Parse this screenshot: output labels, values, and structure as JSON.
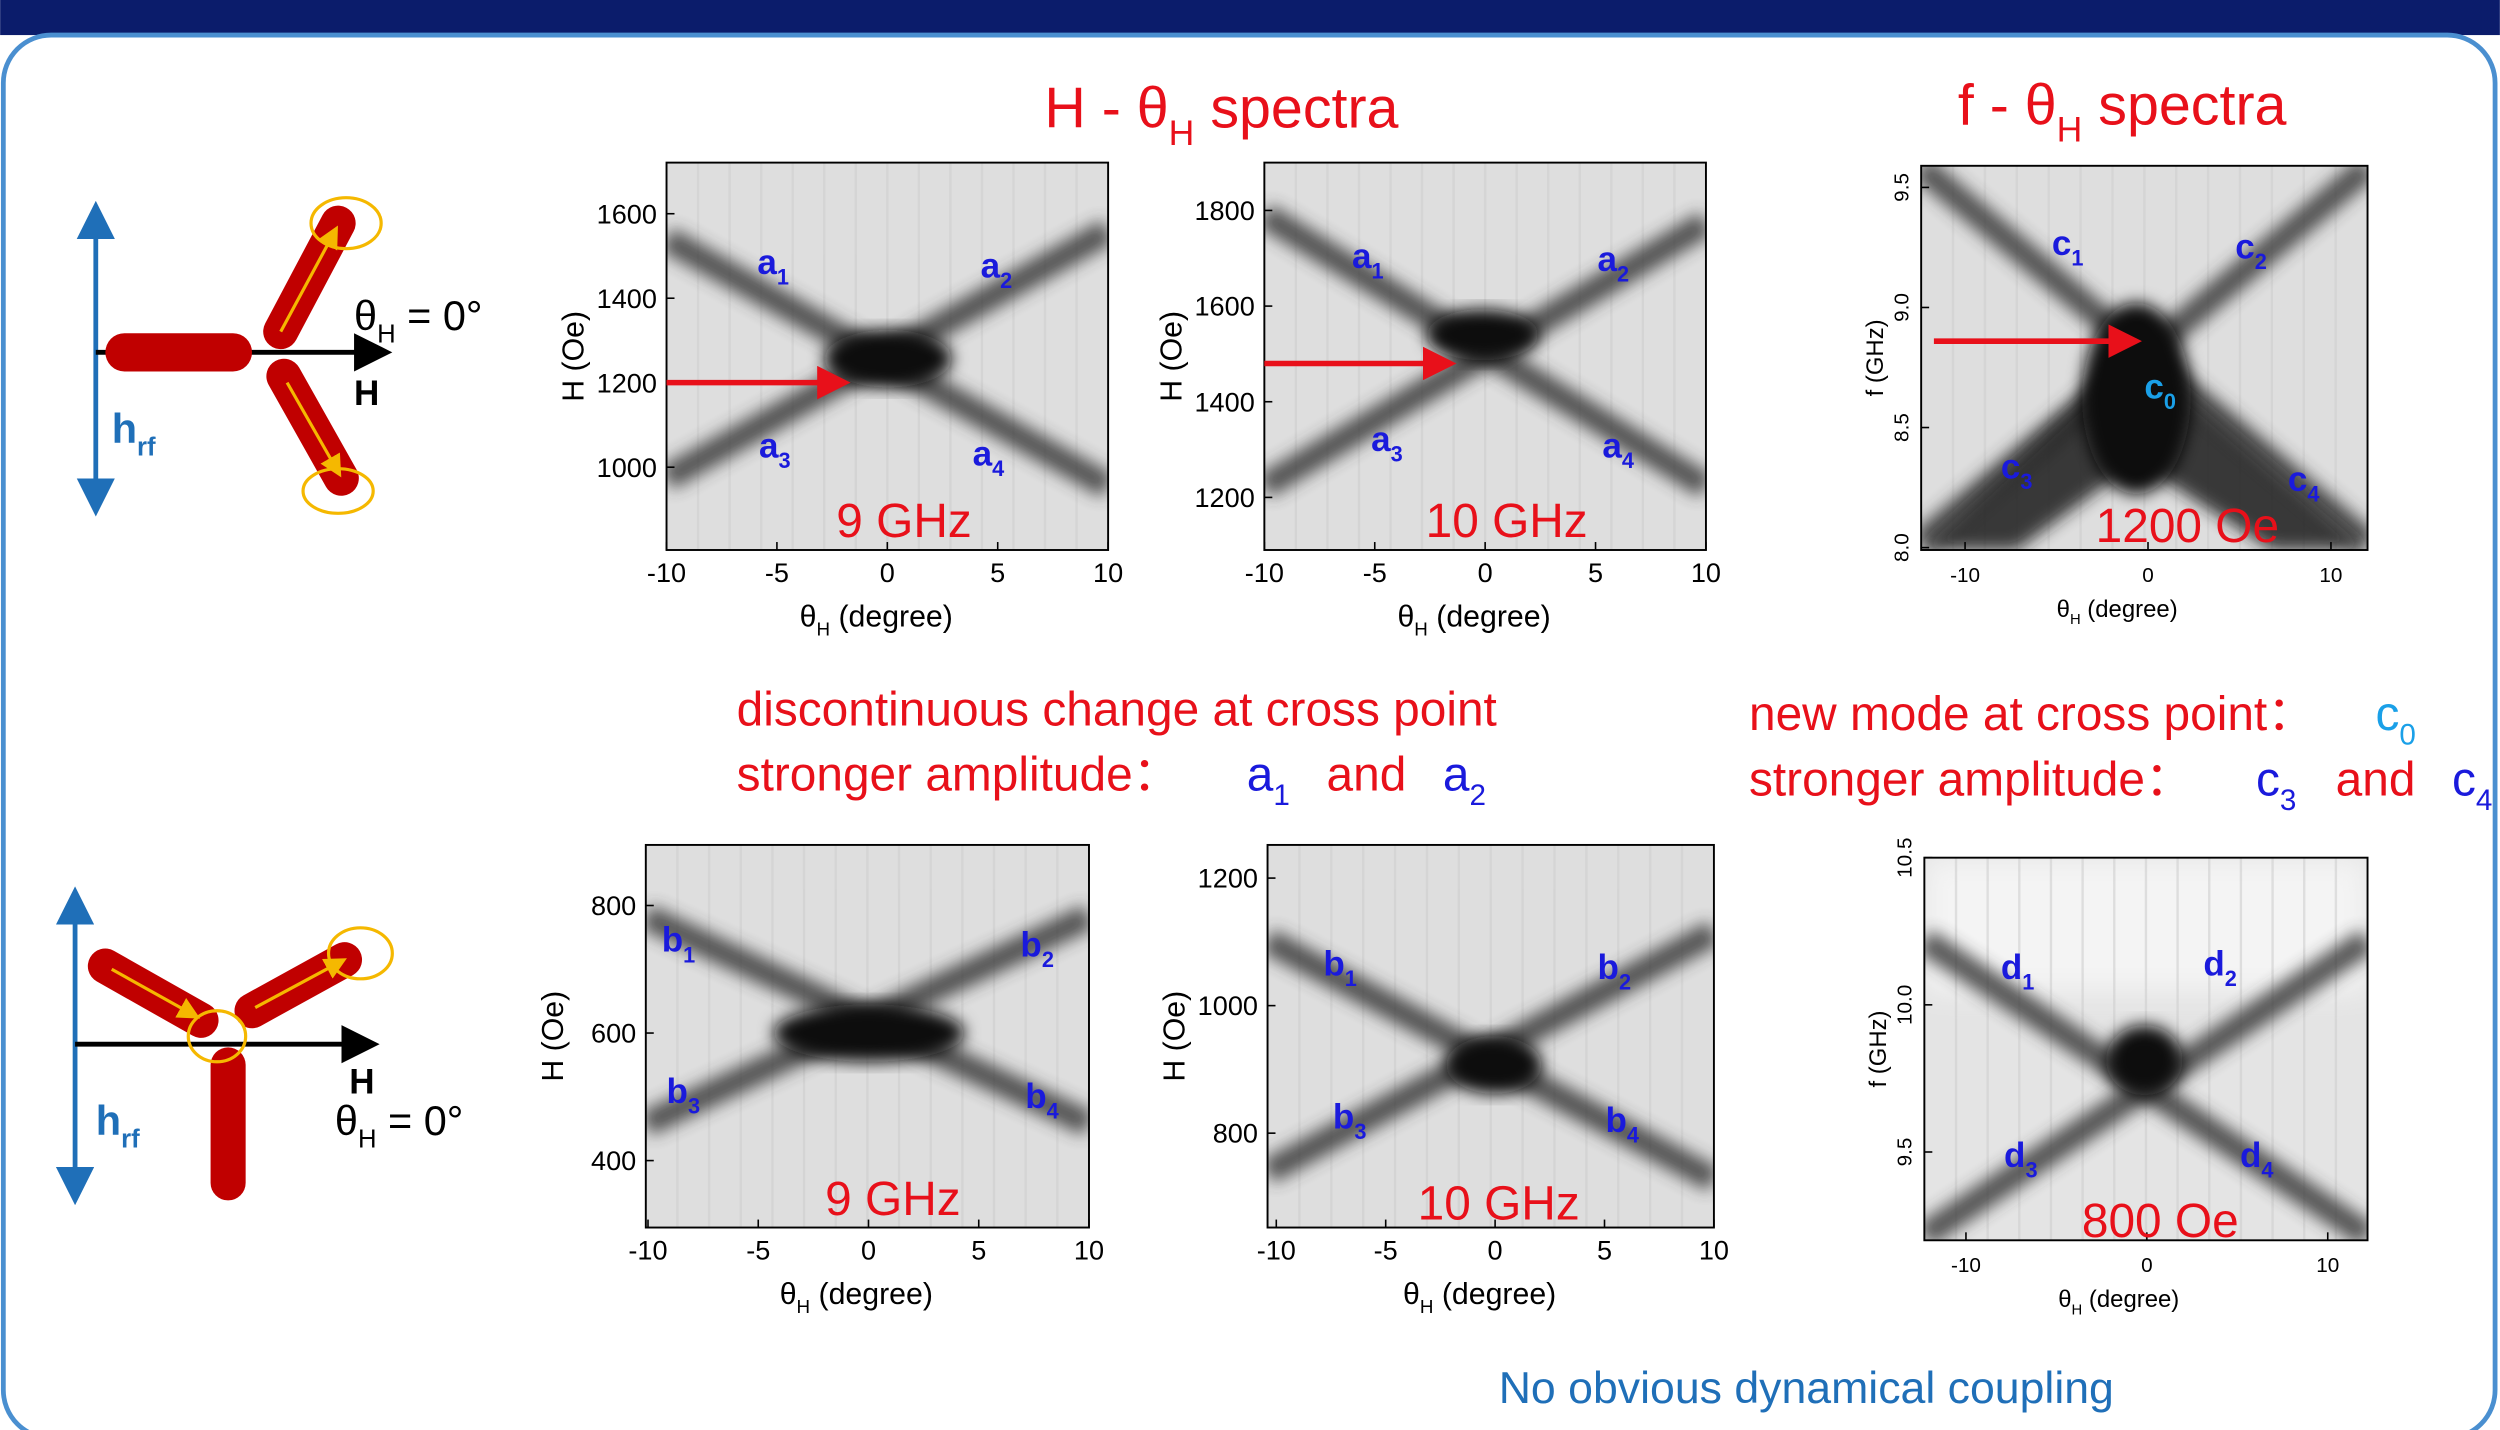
{
  "slide": {
    "section_titles": [
      {
        "main": "H - θ",
        "sub": "H",
        "rest": " spectra"
      },
      {
        "main": "f - θ",
        "sub": "H",
        "rest": " spectra"
      }
    ],
    "diagrams": [
      {
        "angle": {
          "main": "θ",
          "sub": "H",
          "rest": " = 0°"
        },
        "field": "H",
        "rf": {
          "main": "h",
          "sub": "rf"
        }
      },
      {
        "angle": {
          "main": "θ",
          "sub": "H",
          "rest": " = 0°"
        },
        "field": "H",
        "rf": {
          "main": "h",
          "sub": "rf"
        }
      }
    ],
    "panels": [
      {
        "xlabel": {
          "main": "θ",
          "sub": "H",
          "rest": " (degree)"
        },
        "ylabel": "H (Oe)",
        "xlim": [
          -10,
          10
        ],
        "ylim": [
          804,
          1721
        ],
        "xticks": [
          -10,
          -5,
          0,
          5,
          10
        ],
        "yticks": [
          1000,
          1200,
          1400,
          1600
        ],
        "annotation": "9 GHz",
        "modes": [
          {
            "letter": "a",
            "sub": "1",
            "color": "#1a1adc"
          },
          {
            "letter": "a",
            "sub": "2",
            "color": "#1a1adc"
          },
          {
            "letter": "a",
            "sub": "3",
            "color": "#1a1adc"
          },
          {
            "letter": "a",
            "sub": "4",
            "color": "#1a1adc"
          }
        ]
      },
      {
        "xlabel": {
          "main": "θ",
          "sub": "H",
          "rest": " (degree)"
        },
        "ylabel": "H (Oe)",
        "xlim": [
          -10,
          10
        ],
        "ylim": [
          1090,
          1900
        ],
        "xticks": [
          -10,
          -5,
          0,
          5,
          10
        ],
        "yticks": [
          1200,
          1400,
          1600,
          1800
        ],
        "annotation": "10 GHz",
        "modes": [
          {
            "letter": "a",
            "sub": "1",
            "color": "#1a1adc"
          },
          {
            "letter": "a",
            "sub": "2",
            "color": "#1a1adc"
          },
          {
            "letter": "a",
            "sub": "3",
            "color": "#1a1adc"
          },
          {
            "letter": "a",
            "sub": "4",
            "color": "#1a1adc"
          }
        ]
      },
      {
        "xlabel": {
          "main": "θ",
          "sub": "H",
          "rest": " (degree)"
        },
        "ylabel": "f (GHz)",
        "xlim": [
          -12.4,
          12
        ],
        "ylim": [
          7.99,
          9.59
        ],
        "xticks": [
          -10,
          0,
          10
        ],
        "yticks": [
          {
            "value": 8,
            "label": "8.0"
          },
          8.5,
          {
            "value": 9,
            "label": "9.0"
          },
          9.5
        ],
        "annotation": "1200 Oe",
        "modes": [
          {
            "letter": "c",
            "sub": "1",
            "color": "#1a1adc"
          },
          {
            "letter": "c",
            "sub": "2",
            "color": "#1a1adc"
          },
          {
            "letter": "c",
            "sub": "0",
            "color": "#1aa0e8"
          },
          {
            "letter": "c",
            "sub": "3",
            "color": "#1a1adc"
          },
          {
            "letter": "c",
            "sub": "4",
            "color": "#1a1adc"
          }
        ]
      },
      {
        "xlabel": {
          "main": "θ",
          "sub": "H",
          "rest": " (degree)"
        },
        "ylabel": "H (Oe)",
        "xlim": [
          -10.1,
          10
        ],
        "ylim": [
          295,
          895
        ],
        "xticks": [
          -10,
          -5,
          0,
          5,
          10
        ],
        "yticks": [
          400,
          600,
          800
        ],
        "annotation": "9 GHz",
        "modes": [
          {
            "letter": "b",
            "sub": "1",
            "color": "#1a1adc"
          },
          {
            "letter": "b",
            "sub": "2",
            "color": "#1a1adc"
          },
          {
            "letter": "b",
            "sub": "3",
            "color": "#1a1adc"
          },
          {
            "letter": "b",
            "sub": "4",
            "color": "#1a1adc"
          }
        ]
      },
      {
        "xlabel": {
          "main": "θ",
          "sub": "H",
          "rest": " (degree)"
        },
        "ylabel": "H (Oe)",
        "xlim": [
          -10.4,
          10
        ],
        "ylim": [
          652,
          1252
        ],
        "xticks": [
          -10,
          -5,
          0,
          5,
          10
        ],
        "yticks": [
          800,
          1000,
          1200
        ],
        "annotation": "10 GHz",
        "modes": [
          {
            "letter": "b",
            "sub": "1",
            "color": "#1a1adc"
          },
          {
            "letter": "b",
            "sub": "2",
            "color": "#1a1adc"
          },
          {
            "letter": "b",
            "sub": "3",
            "color": "#1a1adc"
          },
          {
            "letter": "b",
            "sub": "4",
            "color": "#1a1adc"
          }
        ]
      },
      {
        "xlabel": {
          "main": "θ",
          "sub": "H",
          "rest": " (degree)"
        },
        "ylabel": "f (GHz)",
        "xlim": [
          -12.3,
          12.2
        ],
        "ylim": [
          9.2,
          10.5
        ],
        "xticks": [
          -10,
          0,
          10
        ],
        "yticks": [
          9.5,
          {
            "value": 10,
            "label": "10.0"
          },
          10.5
        ],
        "annotation": "800 Oe",
        "modes": [
          {
            "letter": "d",
            "sub": "1",
            "color": "#1a1adc"
          },
          {
            "letter": "d",
            "sub": "2",
            "color": "#1a1adc"
          },
          {
            "letter": "d",
            "sub": "3",
            "color": "#1a1adc"
          },
          {
            "letter": "d",
            "sub": "4",
            "color": "#1a1adc"
          }
        ]
      }
    ],
    "notes": {
      "left_line1": "discontinuous change at cross point",
      "left_line2": {
        "text": "stronger amplitude：",
        "m1": {
          "letter": "a",
          "sub": "1"
        },
        "and": "and",
        "m2": {
          "letter": "a",
          "sub": "2"
        }
      },
      "right_line1": {
        "text": "new mode at cross point：",
        "m": {
          "letter": "c",
          "sub": "0"
        }
      },
      "right_line2": {
        "text": "stronger amplitude：",
        "m1": {
          "letter": "c",
          "sub": "3"
        },
        "and": "and",
        "m2": {
          "letter": "c",
          "sub": "4"
        }
      },
      "bottom": "No obvious dynamical coupling"
    }
  }
}
